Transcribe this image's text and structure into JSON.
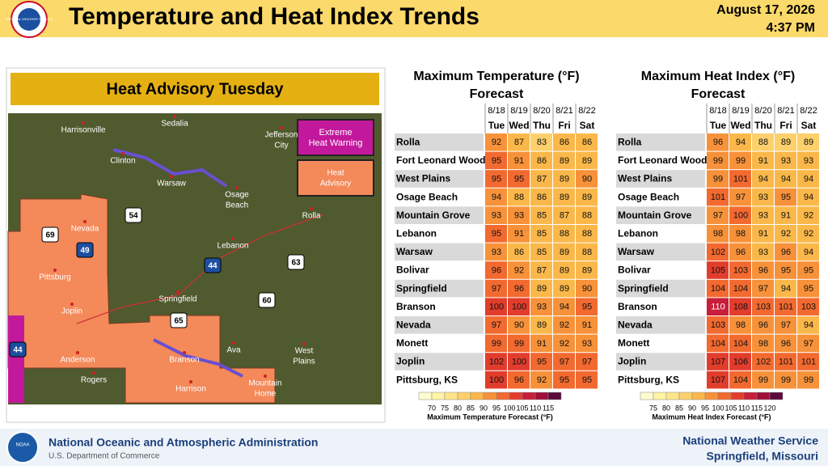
{
  "header": {
    "logo_text": "NATIONAL WEATHER SERVICE",
    "title": "Temperature and Heat Index Trends",
    "date": "August 17, 2026",
    "time": "4:37 PM"
  },
  "map": {
    "title": "Heat Advisory Tuesday",
    "legend": [
      {
        "lines": [
          "Extreme",
          "Heat Warning"
        ],
        "color": "#c2189b"
      },
      {
        "lines": [
          "Heat",
          "Advisory"
        ],
        "color": "#f4895a"
      }
    ],
    "places": [
      "Harrisonville",
      "Sedalia",
      [
        "Jefferson",
        "City"
      ],
      "Clinton",
      "Warsaw",
      [
        "Osage",
        "Beach"
      ],
      "Rolla",
      "Nevada",
      "Lebanon",
      "Pittsburg",
      "Joplin",
      "Springfield",
      "Ava",
      [
        "West",
        "Plains"
      ],
      "Anderson",
      "Branson",
      "Rogers",
      "Harrison",
      [
        "Mountain",
        "Home"
      ]
    ],
    "highways": [
      "54",
      "69",
      "49",
      "44",
      "63",
      "60",
      "65",
      "44"
    ]
  },
  "tables": [
    {
      "title": [
        "Maximum Temperature (°F)",
        "Forecast"
      ],
      "dates": [
        "8/18",
        "8/19",
        "8/20",
        "8/21",
        "8/22"
      ],
      "days": [
        "Tue",
        "Wed",
        "Thu",
        "Fri",
        "Sat"
      ],
      "rows": [
        {
          "name": "Rolla",
          "values": [
            92,
            87,
            83,
            86,
            86
          ]
        },
        {
          "name": "Fort Leonard Wood",
          "values": [
            95,
            91,
            86,
            89,
            89
          ]
        },
        {
          "name": "West Plains",
          "values": [
            95,
            95,
            87,
            89,
            90
          ]
        },
        {
          "name": "Osage Beach",
          "values": [
            94,
            88,
            86,
            89,
            89
          ]
        },
        {
          "name": "Mountain Grove",
          "values": [
            93,
            93,
            85,
            87,
            88
          ]
        },
        {
          "name": "Lebanon",
          "values": [
            95,
            91,
            85,
            88,
            88
          ]
        },
        {
          "name": "Warsaw",
          "values": [
            93,
            86,
            85,
            89,
            88
          ]
        },
        {
          "name": "Bolivar",
          "values": [
            96,
            92,
            87,
            89,
            89
          ]
        },
        {
          "name": "Springfield",
          "values": [
            97,
            96,
            89,
            89,
            90
          ]
        },
        {
          "name": "Branson",
          "values": [
            100,
            100,
            93,
            94,
            95
          ]
        },
        {
          "name": "Nevada",
          "values": [
            97,
            90,
            89,
            92,
            91
          ]
        },
        {
          "name": "Monett",
          "values": [
            99,
            99,
            91,
            92,
            93
          ]
        },
        {
          "name": "Joplin",
          "values": [
            102,
            100,
            95,
            97,
            97
          ]
        },
        {
          "name": "Pittsburg, KS",
          "values": [
            100,
            96,
            92,
            95,
            95
          ]
        }
      ],
      "scale": {
        "ticks": [
          70,
          75,
          80,
          85,
          90,
          95,
          100,
          105,
          110,
          115
        ],
        "colors": [
          "#fffbd0",
          "#fff3a6",
          "#ffe58a",
          "#fdd06c",
          "#fbb84a",
          "#f7923a",
          "#f26a30",
          "#e23d2c",
          "#c81e3a",
          "#9e0f3a",
          "#5b0a3a"
        ],
        "label": "Maximum Temperature Forecast (°F)"
      }
    },
    {
      "title": [
        "Maximum Heat Index (°F)",
        "Forecast"
      ],
      "dates": [
        "8/18",
        "8/19",
        "8/20",
        "8/21",
        "8/22"
      ],
      "days": [
        "Tue",
        "Wed",
        "Thu",
        "Fri",
        "Sat"
      ],
      "rows": [
        {
          "name": "Rolla",
          "values": [
            96,
            94,
            88,
            89,
            89
          ]
        },
        {
          "name": "Fort Leonard Wood",
          "values": [
            99,
            99,
            91,
            93,
            93
          ]
        },
        {
          "name": "West Plains",
          "values": [
            99,
            101,
            94,
            94,
            94
          ]
        },
        {
          "name": "Osage Beach",
          "values": [
            101,
            97,
            93,
            95,
            94
          ]
        },
        {
          "name": "Mountain Grove",
          "values": [
            97,
            100,
            93,
            91,
            92
          ]
        },
        {
          "name": "Lebanon",
          "values": [
            98,
            98,
            91,
            92,
            92
          ]
        },
        {
          "name": "Warsaw",
          "values": [
            102,
            96,
            93,
            96,
            94
          ]
        },
        {
          "name": "Bolivar",
          "values": [
            105,
            103,
            96,
            95,
            95
          ]
        },
        {
          "name": "Springfield",
          "values": [
            104,
            104,
            97,
            94,
            95
          ]
        },
        {
          "name": "Branson",
          "values": [
            110,
            108,
            103,
            101,
            103
          ]
        },
        {
          "name": "Nevada",
          "values": [
            103,
            98,
            96,
            97,
            94
          ]
        },
        {
          "name": "Monett",
          "values": [
            104,
            104,
            98,
            96,
            97
          ]
        },
        {
          "name": "Joplin",
          "values": [
            107,
            106,
            102,
            101,
            101
          ]
        },
        {
          "name": "Pittsburg, KS",
          "values": [
            107,
            104,
            99,
            99,
            99
          ]
        }
      ],
      "scale": {
        "ticks": [
          75,
          80,
          85,
          90,
          95,
          100,
          105,
          110,
          115,
          120
        ],
        "colors": [
          "#fffbd0",
          "#fff3a6",
          "#ffe58a",
          "#fdd06c",
          "#fbb84a",
          "#f7923a",
          "#f26a30",
          "#e23d2c",
          "#c81e3a",
          "#9e0f3a",
          "#5b0a3a"
        ],
        "label": "Maximum Heat Index Forecast (°F)"
      }
    }
  ],
  "footer": {
    "logo_text": "NOAA",
    "agency": "National Oceanic and Atmospheric Administration",
    "department": "U.S. Department of Commerce",
    "office": "National Weather Service",
    "location": "Springfield, Missouri"
  }
}
